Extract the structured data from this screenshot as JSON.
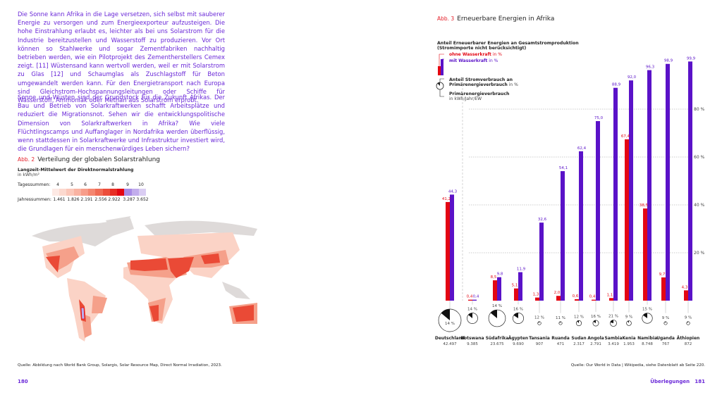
{
  "left_page": {
    "paragraphs": [
      "Die Sonne kann Afrika in die Lage versetzen, sich selbst mit sauberer Energie zu versorgen und zum Energieexporteur aufzusteigen. Die hohe Einstrahlung erlaubt es, leichter als bei uns Solarstrom für die Industrie bereitzustellen und Wasserstoff zu produzieren. Vor Ort können so Stahlwerke und sogar Zementfabriken nachhaltig betrieben werden, wie ein Pilotprojekt des Zementherstellers Cemex zeigt. [11] Wüstensand kann wertvoll werden, weil er mit Solarstrom zu Glas [12] und Schaumglas als Zuschlagstoff für Beton umgewandelt werden kann. Für den Energietransport nach Europa sind Gleichstrom-Hochspannungsleitungen oder Schiffe für Wasserstoff, Ammoniak oder Methan aus Solarstrom erprobt.",
      "Sonne und Wüsten sind der Grundstock für die Zukunft Afrikas. Der Bau und Betrieb von Solarkraftwerken schafft Arbeitsplätze und reduziert die Migrationsnot. Sehen wir die entwicklungspolitische Dimension von Solarkraftwerken in Afrika? Wie viele Flüchtlingscamps und Auffanglager in Nordafrika werden überflüssig, wenn stattdessen in Solarkraftwerke und Infrastruktur investiert wird, die Grundlagen für ein menschenwürdiges Leben sichern?"
    ],
    "figure2": {
      "abb": "Abb. 2",
      "title": "Verteilung der globalen Solarstrahlung",
      "subtitle": "Langzeit-Mittelwert der Direktnormalstrahlung",
      "unit": "in kWh/m²",
      "daily_label": "Tagessummen:",
      "daily_values": [
        "4",
        "5",
        "6",
        "7",
        "8",
        "9",
        "10"
      ],
      "annual_label": "Jahressummen:",
      "annual_values": [
        "1.461",
        "1.826",
        "2.191",
        "2.556",
        "2.922",
        "3.287",
        "3.652"
      ],
      "scale_colors": [
        "#fde9e4",
        "#fcd9cf",
        "#fbc7b9",
        "#f9b3a2",
        "#f79d8a",
        "#f48670",
        "#f06b55",
        "#ec4d3b",
        "#e72e25",
        "#e30613",
        "#a88ae6",
        "#c2adec",
        "#dacdf3"
      ],
      "source": "Quelle: Abbildung nach World Bank Group, Solargis, Solar Resource Map, Direct Normal Irradiation, 2023."
    },
    "page_number": "180"
  },
  "right_page": {
    "figure3": {
      "abb": "Abb. 3",
      "title": "Erneuerbare Energien in Afrika",
      "legend_heading": "Anteil Erneuerbarer Energien an Gesamtstromproduktion",
      "legend_subheading": "(Stromimporte nicht berücksichtigt)",
      "legend_red_bold": "ohne Wasserkraft",
      "legend_red_unit": "in %",
      "legend_purple_bold": "mit Wasserkraft",
      "legend_purple_unit": "in %",
      "legend_pie_bold_1": "Anteil Stromverbrauch an",
      "legend_pie_bold_2": "Primärenergieverbrauch",
      "legend_pie_unit": "in %",
      "legend_circle_bold": "Primärenergieverbrauch",
      "legend_circle_unit": "in kWh/Jahr/EW",
      "source": "Quelle: Our World in Data | Wikipedia, siehe Datenblatt ab Seite 220."
    },
    "section": "Überlegungen",
    "page_number": "181"
  },
  "colors": {
    "red": "#e30613",
    "purple": "#5a12c8",
    "text_purple": "#6a28d8",
    "grid": "#999999"
  },
  "chart_data": {
    "type": "bar",
    "categories": [
      "Deutschland",
      "Botswana",
      "Südafrika",
      "Ägypten",
      "Tansania",
      "Ruanda",
      "Sudan",
      "Angola",
      "Sambia",
      "Kenia",
      "Namibia",
      "Uganda",
      "Äthiopien"
    ],
    "series": [
      {
        "name": "ohne Wasserkraft",
        "values": [
          41.2,
          0.4,
          8.5,
          5.1,
          1.3,
          2.0,
          0.6,
          0.4,
          1.1,
          67.4,
          38.5,
          9.7,
          4.3
        ],
        "labels": [
          "41,2",
          "0,4",
          "8,5",
          "5,1",
          "1,3",
          "2,0",
          "0,6",
          "0,4",
          "1,1",
          "67,4",
          "38,5",
          "9,7",
          "4,3"
        ]
      },
      {
        "name": "mit Wasserkraft",
        "values": [
          44.3,
          0.4,
          9.8,
          11.9,
          32.6,
          54.1,
          62.4,
          75.0,
          88.9,
          92.0,
          96.3,
          98.9,
          99.9
        ],
        "labels": [
          "44,3",
          "0,4",
          "9,8",
          "11,9",
          "32,6",
          "54,1",
          "62,4",
          "75,0",
          "88,9",
          "92,0",
          "96,3",
          "98,9",
          "99,9"
        ]
      }
    ],
    "electricity_share_percent": [
      14,
      14,
      14,
      16,
      12,
      11,
      12,
      16,
      21,
      9,
      15,
      9,
      9
    ],
    "electricity_share_labels": [
      "14 %",
      "14 %",
      "14 %",
      "16 %",
      "12 %",
      "11 %",
      "12 %",
      "16 %",
      "21 %",
      "9 %",
      "15 %",
      "9 %",
      "9 %"
    ],
    "primary_energy_kwh_per_capita": [
      42497,
      9385,
      23675,
      9690,
      907,
      471,
      2317,
      2791,
      3419,
      1953,
      8748,
      767,
      872
    ],
    "primary_energy_labels": [
      "42.497",
      "9.385",
      "23.675",
      "9.690",
      "907",
      "471",
      "2.317",
      "2.791",
      "3.419",
      "1.953",
      "8.748",
      "767",
      "872"
    ],
    "ylim": [
      0,
      100
    ],
    "yticks": [
      20,
      40,
      60,
      80
    ],
    "ytick_labels": [
      "20 %",
      "40 %",
      "60 %",
      "80 %"
    ],
    "grid": true
  }
}
